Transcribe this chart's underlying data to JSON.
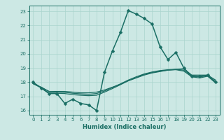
{
  "xlabel": "Humidex (Indice chaleur)",
  "bg_color": "#cce8e4",
  "grid_color": "#aad4ce",
  "line_color": "#1a6e64",
  "xlim": [
    -0.5,
    23.5
  ],
  "ylim": [
    15.7,
    23.4
  ],
  "xticks": [
    0,
    1,
    2,
    3,
    4,
    5,
    6,
    7,
    8,
    9,
    10,
    11,
    12,
    13,
    14,
    15,
    16,
    17,
    18,
    19,
    20,
    21,
    22,
    23
  ],
  "yticks": [
    16,
    17,
    18,
    19,
    20,
    21,
    22,
    23
  ],
  "lines": [
    {
      "x": [
        0,
        1,
        2,
        3,
        4,
        5,
        6,
        7,
        8,
        9,
        10,
        11,
        12,
        13,
        14,
        15,
        16,
        17,
        18,
        19,
        20,
        21,
        22,
        23
      ],
      "y": [
        18.0,
        17.6,
        17.2,
        17.2,
        16.5,
        16.8,
        16.5,
        16.4,
        16.0,
        18.7,
        20.2,
        21.5,
        23.05,
        22.8,
        22.5,
        22.1,
        20.5,
        19.6,
        20.1,
        19.0,
        18.4,
        18.4,
        18.5,
        18.0
      ],
      "has_marker": true,
      "markersize": 2.5,
      "linewidth": 1.1
    },
    {
      "x": [
        0,
        1,
        2,
        3,
        4,
        5,
        6,
        7,
        8,
        9,
        10,
        11,
        12,
        13,
        14,
        15,
        16,
        17,
        18,
        19,
        20,
        21,
        22,
        23
      ],
      "y": [
        17.9,
        17.65,
        17.35,
        17.35,
        17.35,
        17.3,
        17.25,
        17.25,
        17.3,
        17.45,
        17.65,
        17.85,
        18.1,
        18.3,
        18.5,
        18.65,
        18.75,
        18.85,
        18.9,
        18.95,
        18.5,
        18.5,
        18.5,
        18.15
      ],
      "has_marker": false,
      "markersize": 0,
      "linewidth": 0.9
    },
    {
      "x": [
        0,
        1,
        2,
        3,
        4,
        5,
        6,
        7,
        8,
        9,
        10,
        11,
        12,
        13,
        14,
        15,
        16,
        17,
        18,
        19,
        20,
        21,
        22,
        23
      ],
      "y": [
        17.9,
        17.65,
        17.35,
        17.3,
        17.28,
        17.22,
        17.18,
        17.15,
        17.2,
        17.38,
        17.62,
        17.88,
        18.15,
        18.38,
        18.58,
        18.72,
        18.82,
        18.88,
        18.9,
        18.85,
        18.45,
        18.38,
        18.45,
        18.05
      ],
      "has_marker": false,
      "markersize": 0,
      "linewidth": 0.9
    },
    {
      "x": [
        0,
        1,
        2,
        3,
        4,
        5,
        6,
        7,
        8,
        9,
        10,
        11,
        12,
        13,
        14,
        15,
        16,
        17,
        18,
        19,
        20,
        21,
        22,
        23
      ],
      "y": [
        17.9,
        17.6,
        17.25,
        17.22,
        17.2,
        17.12,
        17.08,
        17.05,
        17.08,
        17.3,
        17.55,
        17.82,
        18.1,
        18.32,
        18.55,
        18.68,
        18.78,
        18.85,
        18.88,
        18.78,
        18.38,
        18.3,
        18.42,
        17.95
      ],
      "has_marker": false,
      "markersize": 0,
      "linewidth": 0.9
    }
  ]
}
